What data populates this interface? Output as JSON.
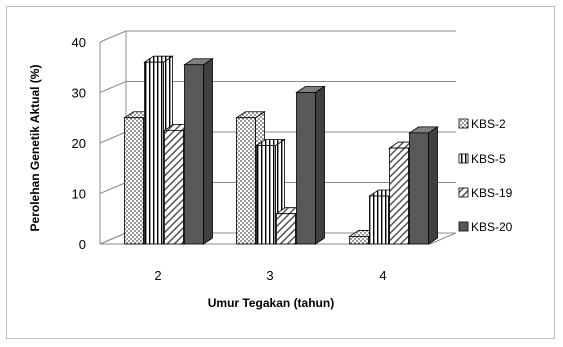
{
  "chart_data": {
    "type": "bar",
    "title": "",
    "xlabel": "Umur Tegakan (tahun)",
    "ylabel": "Perolehan Genetik Aktual (%)",
    "ylim": [
      0,
      40
    ],
    "yticks": [
      "0",
      "10",
      "20",
      "30",
      "40"
    ],
    "categories": [
      "2",
      "3",
      "4"
    ],
    "series": [
      {
        "name": "KBS-2",
        "values": [
          25,
          25,
          1.5
        ],
        "pattern": "dots"
      },
      {
        "name": "KBS-5",
        "values": [
          36,
          19.5,
          9.5
        ],
        "pattern": "vertical"
      },
      {
        "name": "KBS-19",
        "values": [
          22.5,
          6,
          19
        ],
        "pattern": "diagonal"
      },
      {
        "name": "KBS-20",
        "values": [
          35.5,
          30,
          22
        ],
        "pattern": "solid"
      }
    ],
    "grid": true,
    "legend_position": "right",
    "colors": {
      "solid_front": "#595959",
      "solid_side": "#404040",
      "solid_top": "#7f7f7f",
      "outline": "#000000"
    }
  }
}
